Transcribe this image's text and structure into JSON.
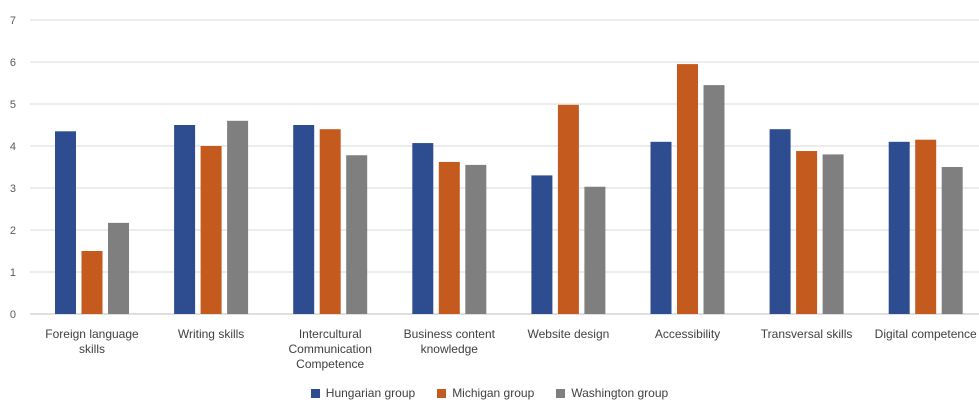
{
  "chart_data": {
    "type": "bar",
    "categories": [
      "Foreign language skills",
      "Writing skills",
      "Intercultural Communication Competence",
      "Business content knowledge",
      "Website design",
      "Accessibility",
      "Transversal skills",
      "Digital competence"
    ],
    "category_lines": [
      [
        "Foreign language",
        "skills"
      ],
      [
        "Writing skills"
      ],
      [
        "Intercultural",
        "Communication",
        "Competence"
      ],
      [
        "Business content",
        "knowledge"
      ],
      [
        "Website design"
      ],
      [
        "Accessibility"
      ],
      [
        "Transversal skills"
      ],
      [
        "Digital competence"
      ]
    ],
    "series": [
      {
        "name": "Hungarian group",
        "color": "#2E4D91",
        "values": [
          4.35,
          4.5,
          4.5,
          4.07,
          3.3,
          4.1,
          4.4,
          4.1
        ]
      },
      {
        "name": "Michigan group",
        "color": "#C55A1E",
        "values": [
          1.5,
          4.0,
          4.4,
          3.62,
          4.98,
          5.95,
          3.88,
          4.15
        ]
      },
      {
        "name": "Washington group",
        "color": "#7F7F7F",
        "values": [
          2.17,
          4.6,
          3.78,
          3.55,
          3.03,
          5.45,
          3.8,
          3.5
        ]
      }
    ],
    "ylim": [
      0,
      7
    ],
    "yticks": [
      0,
      1,
      2,
      3,
      4,
      5,
      6,
      7
    ],
    "grid": true,
    "legend_position": "bottom",
    "title": "",
    "xlabel": "",
    "ylabel": ""
  }
}
